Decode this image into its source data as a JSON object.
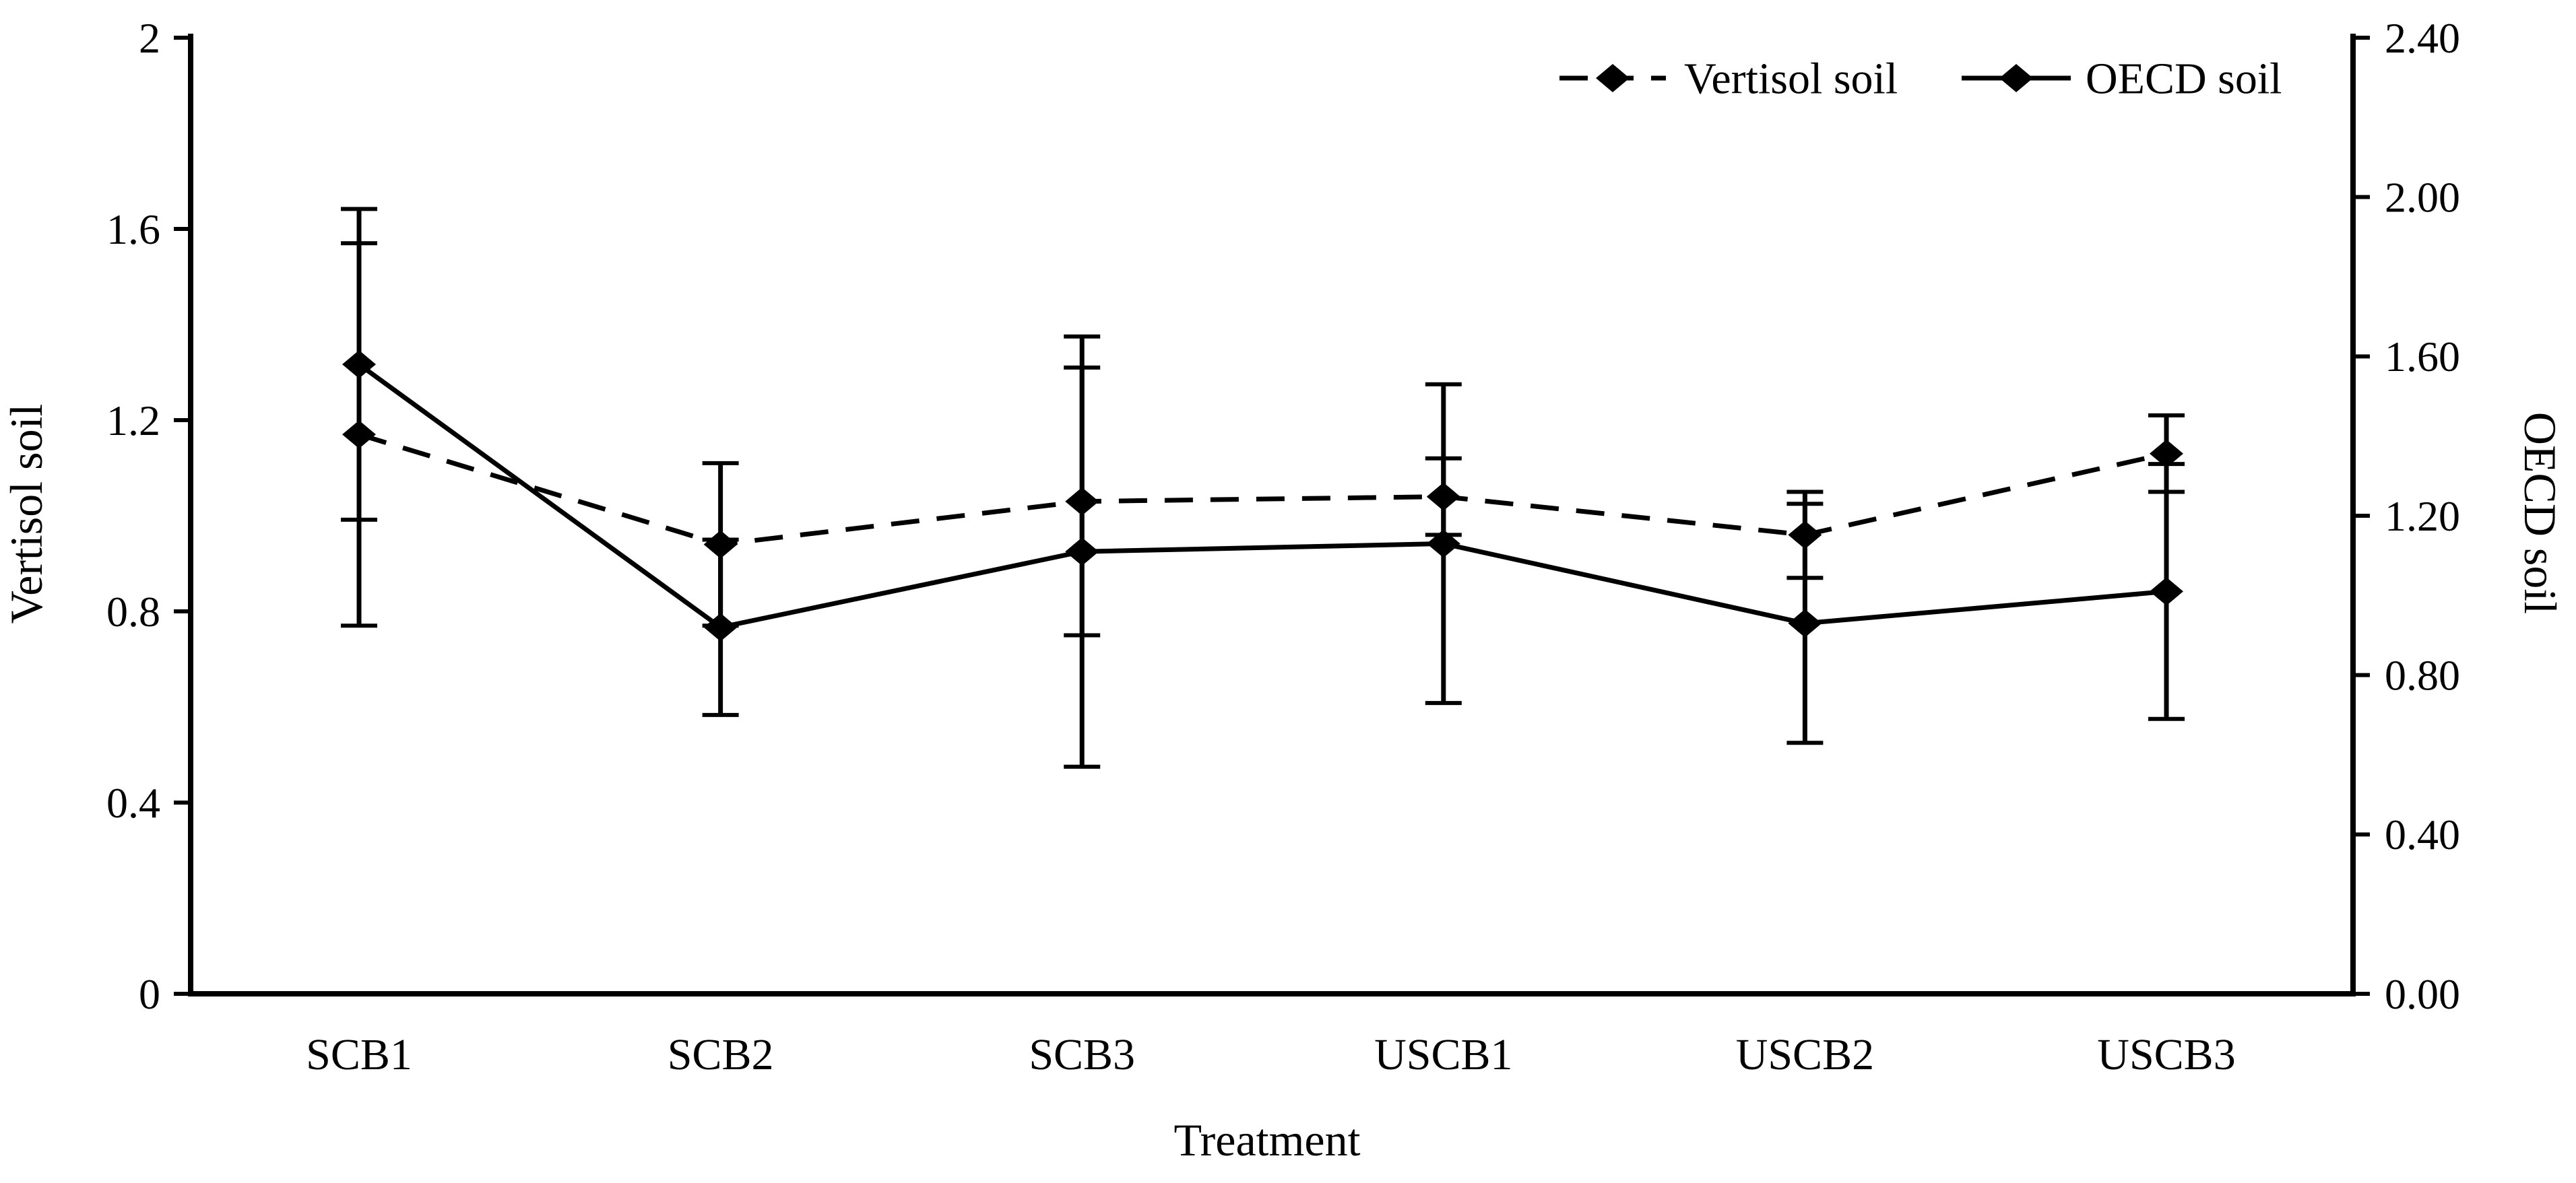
{
  "chart_data": {
    "type": "line",
    "title": "",
    "categories": [
      "SCB1",
      "SCB2",
      "SCB3",
      "USCB1",
      "USCB2",
      "USCB3"
    ],
    "series": [
      {
        "name": "Vertisol soil",
        "axis": "left",
        "line_style": "dashed",
        "marker": "diamond",
        "color": "#000000",
        "values": [
          1.17,
          0.94,
          1.03,
          1.04,
          0.96,
          1.13
        ],
        "error_bars": [
          0.4,
          0.17,
          0.28,
          0.08,
          0.09,
          0.08
        ]
      },
      {
        "name": "OECD soil",
        "axis": "right",
        "line_style": "solid",
        "marker": "diamond",
        "color": "#000000",
        "values": [
          1.58,
          0.92,
          1.11,
          1.13,
          0.93,
          1.01
        ],
        "error_bars": [
          0.39,
          0.22,
          0.54,
          0.4,
          0.3,
          0.32
        ]
      }
    ],
    "left_axis": {
      "title": "Vertisol soil",
      "min": 0,
      "max": 2,
      "tick_values": [
        0,
        0.4,
        0.8,
        1.2,
        1.6,
        2
      ],
      "tick_labels": [
        "0",
        "0.4",
        "0.8",
        "1.2",
        "1.6",
        "2"
      ]
    },
    "right_axis": {
      "title": "OECD soil",
      "min": 0,
      "max": 2.4,
      "tick_values": [
        0,
        0.4,
        0.8,
        1.2,
        1.6,
        2.0,
        2.4
      ],
      "tick_labels": [
        "0.00",
        "0.40",
        "0.80",
        "1.20",
        "1.60",
        "2.00",
        "2.40"
      ]
    },
    "x_axis": {
      "title": "Treatment"
    },
    "legend": {
      "position": "top-right",
      "entries": [
        {
          "label": "Vertisol soil",
          "style": "dashed-line-diamond"
        },
        {
          "label": "OECD soil",
          "style": "solid-line-diamond"
        }
      ]
    },
    "grid": false,
    "colors": {
      "foreground": "#000000",
      "background": "#ffffff"
    }
  }
}
